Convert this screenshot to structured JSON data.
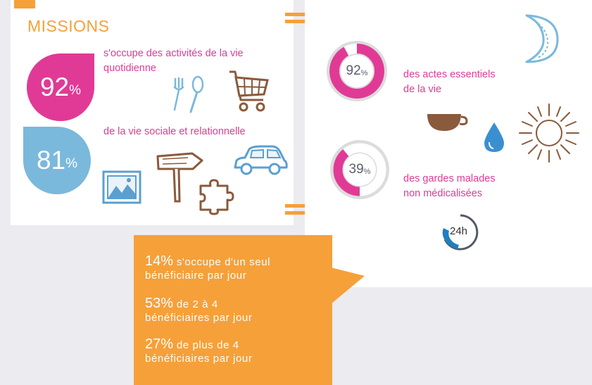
{
  "title": "MISSIONS",
  "left": {
    "stat1": {
      "number": "92",
      "unit": "%",
      "text": "s'occupe des activités de la vie quotidienne"
    },
    "stat2": {
      "number": "81",
      "unit": "%",
      "text": "de la vie sociale et relationnelle"
    }
  },
  "right": {
    "donut1": {
      "number": "92",
      "unit": "%",
      "value": 92,
      "line1": "des actes essentiels",
      "line2": "de la vie"
    },
    "donut2": {
      "number": "39",
      "unit": "%",
      "value": 39,
      "line1": "des gardes malades",
      "line2": "non médicalisées"
    },
    "badge_24h": "24h"
  },
  "callout": [
    {
      "pct": "14%",
      "line1": "s'occupe d'un seul",
      "line2": "bénéficiaire par jour"
    },
    {
      "pct": "53%",
      "line1": "de 2 à 4",
      "line2": "bénéficiaires par jour"
    },
    {
      "pct": "27%",
      "line1": "de plus de 4",
      "line2": "bénéficiaires par jour"
    }
  ],
  "colors": {
    "orange": "#f6a03a",
    "pink": "#e03a96",
    "blue": "#7ab9dc",
    "brown": "#8a5a3c",
    "gray": "#dcdcdc"
  },
  "icons": [
    "fork-spoon-icon",
    "shopping-cart-icon",
    "picture-frame-icon",
    "signpost-icon",
    "puzzle-piece-icon",
    "car-icon",
    "moon-icon",
    "coffee-cup-icon",
    "water-drop-icon",
    "sun-icon",
    "clock-24h-icon"
  ]
}
